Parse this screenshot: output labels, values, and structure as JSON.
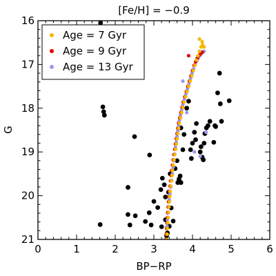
{
  "chart_data": {
    "type": "scatter",
    "title": "[Fe/H] = −0.9",
    "xlabel": "BP−RP",
    "ylabel": "G",
    "xlim": [
      0,
      6
    ],
    "ylim": [
      21,
      16
    ],
    "y_inverted": true,
    "x_ticks": [
      "0",
      "1",
      "2",
      "3",
      "4",
      "5",
      "6"
    ],
    "y_ticks": [
      "16",
      "17",
      "18",
      "19",
      "20",
      "21"
    ],
    "grid": false,
    "legend_position": "top-left",
    "observed_points": {
      "color": "#000000",
      "points": [
        [
          1.62,
          16.05
        ],
        [
          1.68,
          17.97
        ],
        [
          1.7,
          18.08
        ],
        [
          1.72,
          18.16
        ],
        [
          1.61,
          20.66
        ],
        [
          2.33,
          20.43
        ],
        [
          2.33,
          19.81
        ],
        [
          2.38,
          20.67
        ],
        [
          2.52,
          20.46
        ],
        [
          2.5,
          18.65
        ],
        [
          2.78,
          20.59
        ],
        [
          2.88,
          20.39
        ],
        [
          2.89,
          19.07
        ],
        [
          2.93,
          20.67
        ],
        [
          3.0,
          20.13
        ],
        [
          3.1,
          20.27
        ],
        [
          3.18,
          19.86
        ],
        [
          3.2,
          20.71
        ],
        [
          3.22,
          19.6
        ],
        [
          3.27,
          19.75
        ],
        [
          3.3,
          20.55
        ],
        [
          3.3,
          20.03
        ],
        [
          3.33,
          20.92
        ],
        [
          3.35,
          20.85
        ],
        [
          3.38,
          19.92
        ],
        [
          3.4,
          20.7
        ],
        [
          3.42,
          19.5
        ],
        [
          3.45,
          20.28
        ],
        [
          3.5,
          20.58
        ],
        [
          3.55,
          19.38
        ],
        [
          3.6,
          19.2
        ],
        [
          3.62,
          19.7
        ],
        [
          3.65,
          19.62
        ],
        [
          3.68,
          19.55
        ],
        [
          3.7,
          19.7
        ],
        [
          3.7,
          18.45
        ],
        [
          3.75,
          18.95
        ],
        [
          3.78,
          18.6
        ],
        [
          3.85,
          18.0
        ],
        [
          3.9,
          17.84
        ],
        [
          3.95,
          18.95
        ],
        [
          3.97,
          19.15
        ],
        [
          4.0,
          18.8
        ],
        [
          4.05,
          18.55
        ],
        [
          4.08,
          18.72
        ],
        [
          4.1,
          18.35
        ],
        [
          4.2,
          19.0
        ],
        [
          4.22,
          18.88
        ],
        [
          4.25,
          19.12
        ],
        [
          4.28,
          19.18
        ],
        [
          4.3,
          18.8
        ],
        [
          4.32,
          18.58
        ],
        [
          4.36,
          18.45
        ],
        [
          4.4,
          18.4
        ],
        [
          4.45,
          18.3
        ],
        [
          4.55,
          18.78
        ],
        [
          4.58,
          18.4
        ],
        [
          4.6,
          18.42
        ],
        [
          4.65,
          17.65
        ],
        [
          4.7,
          17.2
        ],
        [
          4.75,
          18.3
        ],
        [
          4.72,
          17.9
        ],
        [
          4.95,
          17.83
        ]
      ]
    },
    "series": [
      {
        "name": "Age = 7 Gyr",
        "color": "#f5b800",
        "points": [
          [
            3.33,
            21.0
          ],
          [
            3.34,
            20.88
          ],
          [
            3.35,
            20.75
          ],
          [
            3.36,
            20.62
          ],
          [
            3.37,
            20.5
          ],
          [
            3.38,
            20.38
          ],
          [
            3.39,
            20.26
          ],
          [
            3.4,
            20.14
          ],
          [
            3.41,
            20.02
          ],
          [
            3.42,
            19.9
          ],
          [
            3.44,
            19.78
          ],
          [
            3.45,
            19.66
          ],
          [
            3.47,
            19.54
          ],
          [
            3.48,
            19.42
          ],
          [
            3.5,
            19.3
          ],
          [
            3.52,
            19.18
          ],
          [
            3.54,
            19.06
          ],
          [
            3.56,
            18.94
          ],
          [
            3.58,
            18.82
          ],
          [
            3.6,
            18.7
          ],
          [
            3.62,
            18.58
          ],
          [
            3.64,
            18.46
          ],
          [
            3.66,
            18.34
          ],
          [
            3.69,
            18.22
          ],
          [
            3.72,
            18.1
          ],
          [
            3.75,
            17.98
          ],
          [
            3.78,
            17.86
          ],
          [
            3.82,
            17.74
          ],
          [
            3.86,
            17.62
          ],
          [
            3.9,
            17.5
          ],
          [
            3.94,
            17.38
          ],
          [
            3.98,
            17.26
          ],
          [
            4.02,
            17.14
          ],
          [
            4.06,
            17.02
          ],
          [
            4.1,
            16.9
          ],
          [
            4.14,
            16.8
          ],
          [
            4.18,
            16.7
          ],
          [
            4.22,
            16.6
          ],
          [
            4.26,
            16.55
          ],
          [
            4.3,
            16.6
          ],
          [
            4.25,
            16.48
          ],
          [
            4.18,
            16.42
          ]
        ]
      },
      {
        "name": "Age = 9 Gyr",
        "color": "#dd0000",
        "points": [
          [
            3.31,
            21.0
          ],
          [
            3.32,
            20.88
          ],
          [
            3.33,
            20.75
          ],
          [
            3.34,
            20.62
          ],
          [
            3.35,
            20.5
          ],
          [
            3.36,
            20.38
          ],
          [
            3.37,
            20.26
          ],
          [
            3.38,
            20.14
          ],
          [
            3.39,
            20.02
          ],
          [
            3.4,
            19.9
          ],
          [
            3.42,
            19.78
          ],
          [
            3.43,
            19.66
          ],
          [
            3.45,
            19.54
          ],
          [
            3.46,
            19.42
          ],
          [
            3.48,
            19.3
          ],
          [
            3.5,
            19.18
          ],
          [
            3.52,
            19.06
          ],
          [
            3.54,
            18.94
          ],
          [
            3.56,
            18.82
          ],
          [
            3.58,
            18.7
          ],
          [
            3.6,
            18.58
          ],
          [
            3.62,
            18.46
          ],
          [
            3.64,
            18.34
          ],
          [
            3.67,
            18.22
          ],
          [
            3.7,
            18.1
          ],
          [
            3.73,
            17.98
          ],
          [
            3.76,
            17.86
          ],
          [
            3.8,
            17.74
          ],
          [
            3.84,
            17.62
          ],
          [
            3.88,
            17.5
          ],
          [
            3.92,
            17.38
          ],
          [
            3.96,
            17.26
          ],
          [
            4.0,
            17.14
          ],
          [
            4.04,
            17.02
          ],
          [
            4.08,
            16.94
          ],
          [
            4.12,
            16.86
          ],
          [
            4.16,
            16.8
          ],
          [
            4.2,
            16.76
          ],
          [
            4.25,
            16.72
          ],
          [
            3.9,
            16.8
          ]
        ]
      },
      {
        "name": "Age = 13 Gyr",
        "color": "#9999ee",
        "points": [
          [
            3.34,
            20.7
          ],
          [
            3.35,
            20.55
          ],
          [
            3.36,
            20.4
          ],
          [
            3.38,
            20.25
          ],
          [
            3.4,
            20.1
          ],
          [
            3.42,
            19.95
          ],
          [
            3.44,
            19.8
          ],
          [
            3.46,
            19.65
          ],
          [
            3.48,
            19.5
          ],
          [
            3.5,
            19.35
          ],
          [
            3.52,
            19.2
          ],
          [
            3.54,
            19.05
          ],
          [
            3.56,
            18.9
          ],
          [
            3.58,
            18.78
          ],
          [
            3.6,
            18.65
          ],
          [
            3.62,
            18.52
          ],
          [
            3.64,
            18.4
          ],
          [
            3.66,
            18.28
          ],
          [
            3.69,
            18.16
          ],
          [
            3.72,
            18.04
          ],
          [
            3.75,
            17.92
          ],
          [
            3.79,
            17.8
          ],
          [
            3.83,
            17.68
          ],
          [
            3.87,
            17.56
          ],
          [
            3.91,
            17.44
          ],
          [
            3.95,
            17.32
          ],
          [
            3.99,
            17.2
          ],
          [
            4.03,
            17.1
          ],
          [
            4.07,
            17.0
          ],
          [
            4.11,
            16.92
          ],
          [
            4.15,
            16.86
          ],
          [
            4.19,
            16.8
          ],
          [
            4.23,
            16.76
          ],
          [
            4.27,
            16.72
          ],
          [
            4.3,
            16.7
          ],
          [
            3.75,
            17.38
          ],
          [
            3.85,
            18.1
          ],
          [
            4.05,
            19.0
          ],
          [
            4.2,
            19.1
          ],
          [
            4.35,
            18.55
          ]
        ]
      }
    ]
  }
}
